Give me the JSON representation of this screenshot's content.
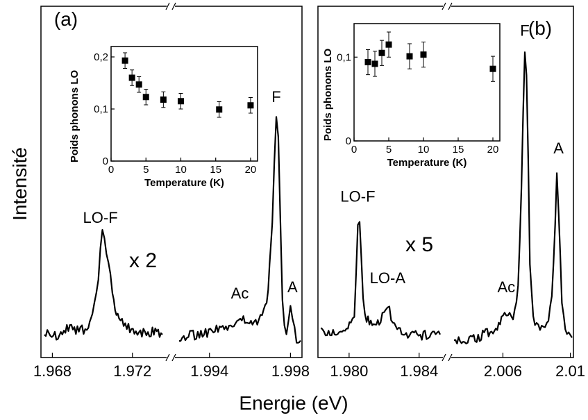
{
  "figure": {
    "ylabel": "Intensité",
    "xlabel": "Energie (eV)"
  },
  "chart_data": [
    {
      "type": "line",
      "panel": "(a)",
      "xlabel": "Energie (eV)",
      "ylabel": "Intensité",
      "broken_axis": true,
      "x_segments": [
        {
          "xlim": [
            1.9675,
            1.9735
          ],
          "ticks": [
            "1.968",
            "1.972"
          ],
          "tick_values": [
            1.968,
            1.972
          ]
        },
        {
          "xlim": [
            1.9925,
            1.9985
          ],
          "ticks": [
            "1.994",
            "1.998"
          ],
          "tick_values": [
            1.994,
            1.998
          ]
        }
      ],
      "scale_note": "x 2",
      "series": [
        {
          "points": [
            [
              1.9676,
              0.04
            ],
            [
              1.9682,
              0.03
            ],
            [
              1.9688,
              0.05
            ],
            [
              1.9694,
              0.04
            ],
            [
              1.9698,
              0.06
            ],
            [
              1.97,
              0.09
            ],
            [
              1.9701,
              0.13
            ],
            [
              1.9702,
              0.17
            ],
            [
              1.9703,
              0.22
            ],
            [
              1.9704,
              0.32
            ],
            [
              1.9705,
              0.36
            ],
            [
              1.9706,
              0.34
            ],
            [
              1.9707,
              0.28
            ],
            [
              1.9708,
              0.26
            ],
            [
              1.9709,
              0.22
            ],
            [
              1.971,
              0.16
            ],
            [
              1.9712,
              0.11
            ],
            [
              1.9714,
              0.07
            ],
            [
              1.9718,
              0.05
            ],
            [
              1.9724,
              0.04
            ],
            [
              1.973,
              0.04
            ],
            [
              1.9735,
              0.03
            ],
            [
              1.9925,
              0.02
            ],
            [
              1.9935,
              0.03
            ],
            [
              1.9945,
              0.05
            ],
            [
              1.9952,
              0.07
            ],
            [
              1.9956,
              0.09
            ],
            [
              1.9959,
              0.08
            ],
            [
              1.9962,
              0.07
            ],
            [
              1.9966,
              0.09
            ],
            [
              1.9969,
              0.17
            ],
            [
              1.9971,
              0.4
            ],
            [
              1.9972,
              0.6
            ],
            [
              1.9973,
              0.74
            ],
            [
              1.9974,
              0.7
            ],
            [
              1.9975,
              0.4
            ],
            [
              1.9976,
              0.14
            ],
            [
              1.9977,
              0.05
            ],
            [
              1.9978,
              0.04
            ],
            [
              1.9979,
              0.08
            ],
            [
              1.998,
              0.12
            ],
            [
              1.9981,
              0.1
            ],
            [
              1.9982,
              0.05
            ],
            [
              1.9983,
              0.02
            ],
            [
              1.9985,
              0.01
            ]
          ]
        }
      ],
      "annotations": [
        {
          "text": "LO-F",
          "x": 1.9704,
          "y": 0.4
        },
        {
          "text": "F",
          "x": 1.9973,
          "y": 0.8
        },
        {
          "text": "A",
          "x": 1.9981,
          "y": 0.17
        },
        {
          "text": "Ac",
          "x": 1.9955,
          "y": 0.15
        }
      ],
      "inset": {
        "type": "scatter",
        "xlabel": "Temperature (K)",
        "ylabel": "Poids phonons LO",
        "xlim": [
          0,
          21
        ],
        "ylim": [
          0,
          0.22
        ],
        "xticks": [
          "0",
          "5",
          "10",
          "15",
          "20"
        ],
        "yticks": [
          "0",
          "0,1",
          "0,2"
        ],
        "ytick_values": [
          0,
          0.1,
          0.2
        ],
        "points": [
          {
            "x": 2,
            "y": 0.193,
            "err": 0.015
          },
          {
            "x": 3,
            "y": 0.16,
            "err": 0.015
          },
          {
            "x": 4,
            "y": 0.147,
            "err": 0.015
          },
          {
            "x": 5,
            "y": 0.123,
            "err": 0.015
          },
          {
            "x": 7.5,
            "y": 0.118,
            "err": 0.015
          },
          {
            "x": 10,
            "y": 0.115,
            "err": 0.015
          },
          {
            "x": 15.5,
            "y": 0.099,
            "err": 0.015
          },
          {
            "x": 20,
            "y": 0.107,
            "err": 0.015
          }
        ]
      }
    },
    {
      "type": "line",
      "panel": "(b)",
      "xlabel": "Energie (eV)",
      "ylabel": "Intensité",
      "broken_axis": true,
      "x_segments": [
        {
          "xlim": [
            1.9783,
            1.9852
          ],
          "ticks": [
            "1.980",
            "1.984"
          ],
          "tick_values": [
            1.98,
            1.984
          ]
        },
        {
          "xlim": [
            2.0031,
            2.0101
          ],
          "ticks": [
            "2.006",
            "2.01"
          ],
          "tick_values": [
            2.006,
            2.01
          ]
        }
      ],
      "scale_note": "x 5",
      "series": [
        {
          "points": [
            [
              1.9784,
              0.04
            ],
            [
              1.979,
              0.03
            ],
            [
              1.9796,
              0.05
            ],
            [
              1.9801,
              0.06
            ],
            [
              1.9803,
              0.1
            ],
            [
              1.9804,
              0.25
            ],
            [
              1.9805,
              0.38
            ],
            [
              1.9806,
              0.4
            ],
            [
              1.9807,
              0.3
            ],
            [
              1.9808,
              0.15
            ],
            [
              1.981,
              0.08
            ],
            [
              1.9814,
              0.06
            ],
            [
              1.9818,
              0.08
            ],
            [
              1.9821,
              0.1
            ],
            [
              1.9822,
              0.12
            ],
            [
              1.9823,
              0.11
            ],
            [
              1.9825,
              0.07
            ],
            [
              1.983,
              0.04
            ],
            [
              1.9838,
              0.03
            ],
            [
              1.9846,
              0.03
            ],
            [
              1.9852,
              0.03
            ],
            [
              2.0031,
              0.01
            ],
            [
              2.004,
              0.01
            ],
            [
              2.0048,
              0.03
            ],
            [
              2.0055,
              0.05
            ],
            [
              2.006,
              0.08
            ],
            [
              2.0063,
              0.1
            ],
            [
              2.0066,
              0.09
            ],
            [
              2.0069,
              0.18
            ],
            [
              2.0071,
              0.5
            ],
            [
              2.0072,
              0.75
            ],
            [
              2.0073,
              0.95
            ],
            [
              2.0074,
              0.9
            ],
            [
              2.0075,
              0.6
            ],
            [
              2.0076,
              0.25
            ],
            [
              2.0078,
              0.08
            ],
            [
              2.0082,
              0.05
            ],
            [
              2.0086,
              0.06
            ],
            [
              2.0089,
              0.15
            ],
            [
              2.0091,
              0.4
            ],
            [
              2.0092,
              0.55
            ],
            [
              2.0093,
              0.45
            ],
            [
              2.0095,
              0.15
            ],
            [
              2.0097,
              0.04
            ],
            [
              2.0101,
              0.02
            ]
          ]
        }
      ],
      "annotations": [
        {
          "text": "LO-F",
          "x": 1.9805,
          "y": 0.47
        },
        {
          "text": "LO-A",
          "x": 1.9822,
          "y": 0.2
        },
        {
          "text": "F",
          "x": 2.0073,
          "y": 1.02
        },
        {
          "text": "A",
          "x": 2.0093,
          "y": 0.63
        },
        {
          "text": "Ac",
          "x": 2.0062,
          "y": 0.17
        }
      ],
      "inset": {
        "type": "scatter",
        "xlabel": "Temperature (K)",
        "ylabel": "Poids phonons LO",
        "xlim": [
          0,
          21
        ],
        "ylim": [
          0,
          0.14
        ],
        "xticks": [
          "0",
          "5",
          "10",
          "15",
          "20"
        ],
        "yticks": [
          "0",
          "0,1"
        ],
        "ytick_values": [
          0,
          0.1
        ],
        "points": [
          {
            "x": 2,
            "y": 0.094,
            "err": 0.015
          },
          {
            "x": 3,
            "y": 0.092,
            "err": 0.015
          },
          {
            "x": 4,
            "y": 0.105,
            "err": 0.015
          },
          {
            "x": 5,
            "y": 0.115,
            "err": 0.015
          },
          {
            "x": 8,
            "y": 0.101,
            "err": 0.015
          },
          {
            "x": 10,
            "y": 0.103,
            "err": 0.015
          },
          {
            "x": 20,
            "y": 0.086,
            "err": 0.015
          }
        ]
      }
    }
  ]
}
